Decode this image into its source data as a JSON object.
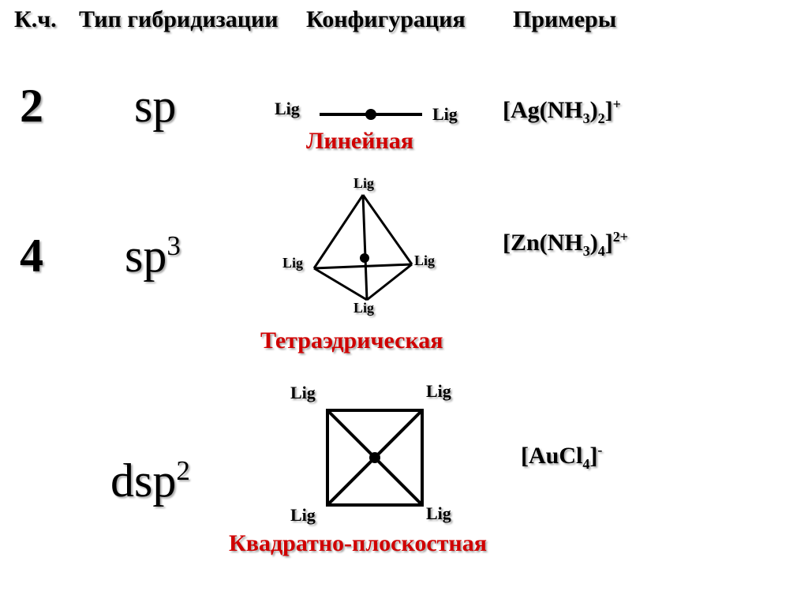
{
  "colors": {
    "red": "#d00000",
    "black": "#000000",
    "shadow": "rgba(0,0,0,0.35)",
    "bg": "#ffffff"
  },
  "headers": {
    "cn": "К.ч.",
    "hybrid": "Тип гибридизации",
    "config": "Конфигурация",
    "examples": "Примеры"
  },
  "rows": {
    "r1": {
      "cn": "2",
      "hybrid_html": "sp",
      "config_name": "Линейная",
      "lig": "Lig",
      "example_html": "[Ag(NH<sub>3</sub>)<sub>2</sub>]<sup>+</sup>",
      "diagram": {
        "type": "linear",
        "line_width": 4,
        "dot_radius": 7
      }
    },
    "r2": {
      "cn": "4",
      "hybrid_html": "sp<sup>3</sup>",
      "config_name": "Тетраэдрическая",
      "lig": "Lig",
      "example_html": "[Zn(NH<sub>3</sub>)<sub>4</sub>]<sup>2+</sup>",
      "diagram": {
        "type": "tetrahedron",
        "line_width": 3,
        "dot_radius": 6
      }
    },
    "r3": {
      "hybrid_html": "dsp<sup>2</sup>",
      "config_name": "Квадратно-плоскостная",
      "lig": "Lig",
      "example_html": "[AuCl<sub>4</sub>]<sup>-</sup>",
      "diagram": {
        "type": "square-planar",
        "line_width": 4,
        "dot_radius": 7
      }
    }
  }
}
